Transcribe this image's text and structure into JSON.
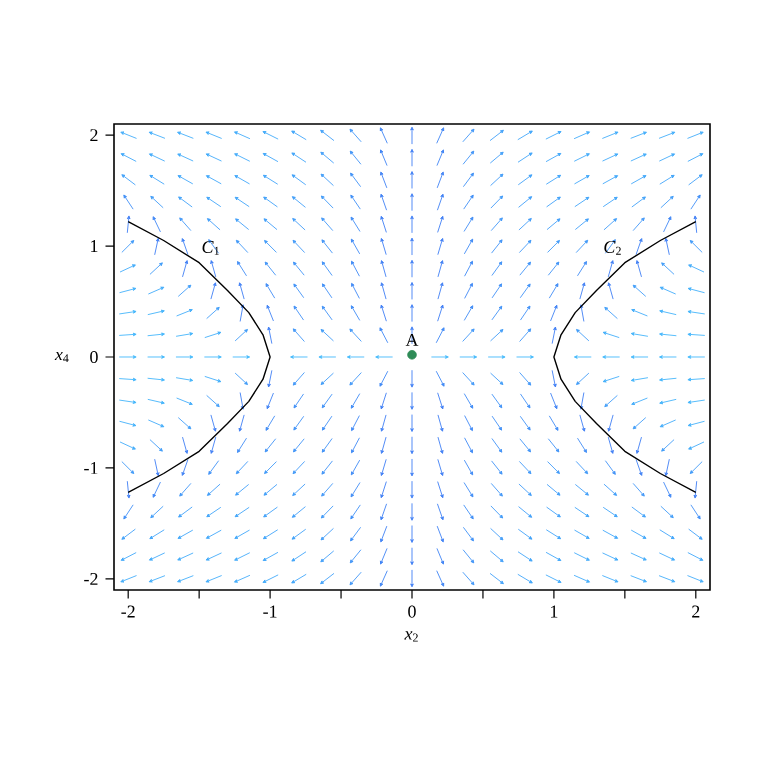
{
  "chart_data": {
    "type": "line",
    "xlabel": "*x*$_{2}$",
    "ylabel": "*x*$_{4}$",
    "xlim": [
      -2.1,
      2.1
    ],
    "ylim": [
      -2.1,
      2.1
    ],
    "xticks": [
      -2,
      {
        "value": -1.5,
        "label": null
      },
      -1,
      {
        "value": -0.5,
        "label": null
      },
      0,
      {
        "value": 0.5,
        "label": null
      },
      1,
      {
        "value": 1.5,
        "label": null
      },
      2
    ],
    "yticks": [
      -2,
      -1,
      0,
      1,
      2
    ],
    "series": [
      {
        "name": "*C*$_{1}$",
        "color": "#000000",
        "x": [
          -2,
          -1.75,
          -1.5,
          -1.3,
          -1.15,
          -1.05,
          -1,
          -1.05,
          -1.15,
          -1.3,
          -1.5,
          -1.75,
          -2
        ],
        "values": [
          1.22,
          1.05,
          0.85,
          0.6,
          0.4,
          0.2,
          0,
          -0.2,
          -0.4,
          -0.6,
          -0.85,
          -1.05,
          -1.22
        ]
      },
      {
        "name": "*C*$_{2}$",
        "color": "#000000",
        "x": [
          2,
          1.75,
          1.5,
          1.3,
          1.15,
          1.05,
          1,
          1.05,
          1.15,
          1.3,
          1.5,
          1.75,
          2
        ],
        "values": [
          1.22,
          1.05,
          0.85,
          0.6,
          0.4,
          0.2,
          0,
          -0.2,
          -0.4,
          -0.6,
          -0.85,
          -1.05,
          -1.22
        ]
      },
      {
        "name": "A",
        "type": "scatter",
        "marker": "circle",
        "color": "#2e8b57",
        "x": [
          0
        ],
        "values": [
          0.02
        ]
      }
    ],
    "grid": false
  }
}
